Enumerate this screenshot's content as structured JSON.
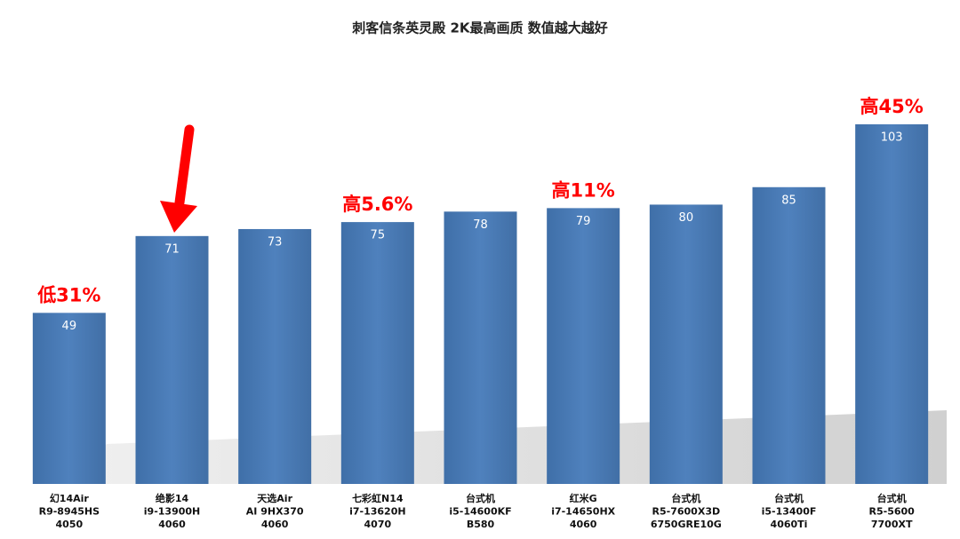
{
  "chart_data": {
    "type": "bar",
    "title": "刺客信条英灵殿 2K最高画质 数值越大越好",
    "categories": [
      [
        "幻14Air",
        "R9-8945HS",
        "4050"
      ],
      [
        "绝影14",
        "i9-13900H",
        "4060"
      ],
      [
        "天选Air",
        "AI 9HX370",
        "4060"
      ],
      [
        "七彩虹N14",
        "i7-13620H",
        "4070"
      ],
      [
        "台式机",
        "i5-14600KF",
        "B580"
      ],
      [
        "红米G",
        "i7-14650HX",
        "4060"
      ],
      [
        "台式机",
        "R5-7600X3D",
        "6750GRE10G"
      ],
      [
        "台式机",
        "i5-13400F",
        "4060Ti"
      ],
      [
        "台式机",
        "R5-5600",
        "7700XT"
      ]
    ],
    "values": [
      49,
      71,
      73,
      75,
      78,
      79,
      80,
      85,
      103
    ],
    "annotations": [
      "低31%",
      null,
      null,
      "高5.6%",
      null,
      "高11%",
      null,
      null,
      "高45%"
    ],
    "color": "#4f81bd",
    "annotation_color": "#ff0000"
  }
}
